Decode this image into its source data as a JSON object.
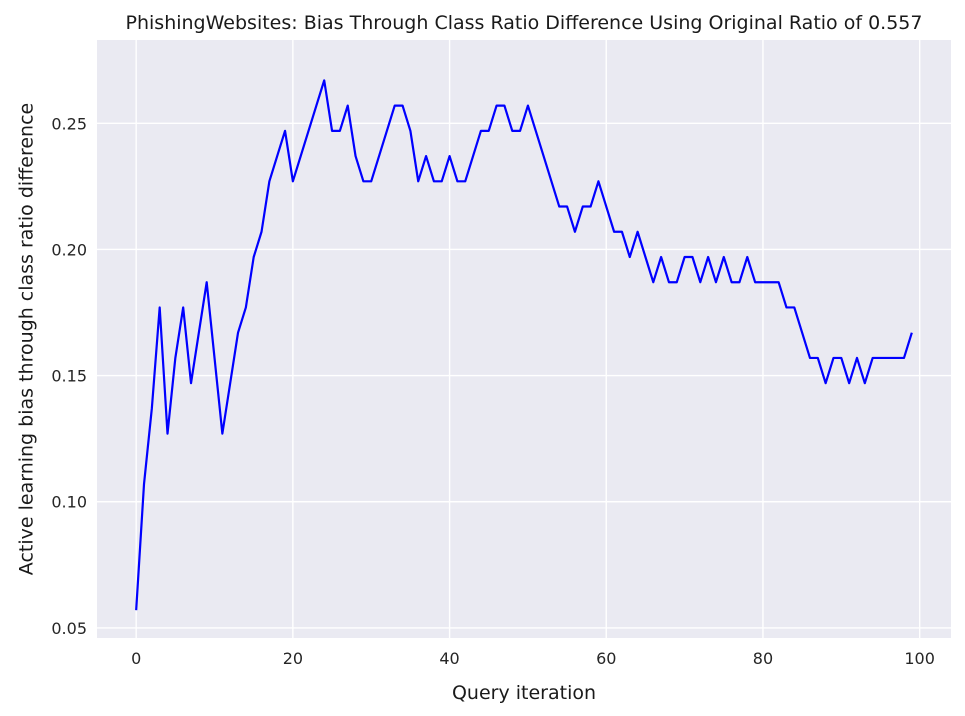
{
  "chart_data": {
    "type": "line",
    "title": "PhishingWebsites: Bias Through Class Ratio Difference Using Original Ratio of 0.557",
    "xlabel": "Query iteration",
    "ylabel": "Active learning bias through class ratio difference",
    "xlim": [
      -5,
      104
    ],
    "ylim": [
      0.046,
      0.283
    ],
    "xticks": [
      0,
      20,
      40,
      60,
      80,
      100
    ],
    "yticks": [
      0.05,
      0.1,
      0.15,
      0.2,
      0.25
    ],
    "ytick_labels": [
      "0.05",
      "0.10",
      "0.15",
      "0.20",
      "0.25"
    ],
    "grid": true,
    "series": [
      {
        "color": "#0000ff",
        "x": [
          0,
          1,
          2,
          3,
          4,
          5,
          6,
          7,
          8,
          9,
          10,
          11,
          12,
          13,
          14,
          15,
          16,
          17,
          18,
          19,
          20,
          21,
          22,
          23,
          24,
          25,
          26,
          27,
          28,
          29,
          30,
          31,
          32,
          33,
          34,
          35,
          36,
          37,
          38,
          39,
          40,
          41,
          42,
          43,
          44,
          45,
          46,
          47,
          48,
          49,
          50,
          51,
          52,
          53,
          54,
          55,
          56,
          57,
          58,
          59,
          60,
          61,
          62,
          63,
          64,
          65,
          66,
          67,
          68,
          69,
          70,
          71,
          72,
          73,
          74,
          75,
          76,
          77,
          78,
          79,
          80,
          81,
          82,
          83,
          84,
          85,
          86,
          87,
          88,
          89,
          90,
          91,
          92,
          93,
          94,
          95,
          96,
          97,
          98,
          99
        ],
        "y": [
          0.057,
          0.107,
          0.137,
          0.177,
          0.127,
          0.157,
          0.177,
          0.147,
          0.167,
          0.187,
          0.157,
          0.127,
          0.147,
          0.167,
          0.177,
          0.197,
          0.207,
          0.227,
          0.237,
          0.247,
          0.227,
          0.237,
          0.247,
          0.257,
          0.267,
          0.247,
          0.247,
          0.257,
          0.237,
          0.227,
          0.227,
          0.237,
          0.247,
          0.257,
          0.257,
          0.247,
          0.227,
          0.237,
          0.227,
          0.227,
          0.237,
          0.227,
          0.227,
          0.237,
          0.247,
          0.247,
          0.257,
          0.257,
          0.247,
          0.247,
          0.257,
          0.247,
          0.237,
          0.227,
          0.217,
          0.217,
          0.207,
          0.217,
          0.217,
          0.227,
          0.217,
          0.207,
          0.207,
          0.197,
          0.207,
          0.197,
          0.187,
          0.197,
          0.187,
          0.187,
          0.197,
          0.197,
          0.187,
          0.197,
          0.187,
          0.197,
          0.187,
          0.187,
          0.197,
          0.187,
          0.187,
          0.187,
          0.187,
          0.177,
          0.177,
          0.167,
          0.157,
          0.157,
          0.147,
          0.157,
          0.157,
          0.147,
          0.157,
          0.147,
          0.157,
          0.157,
          0.157,
          0.157,
          0.157,
          0.167
        ]
      }
    ]
  }
}
